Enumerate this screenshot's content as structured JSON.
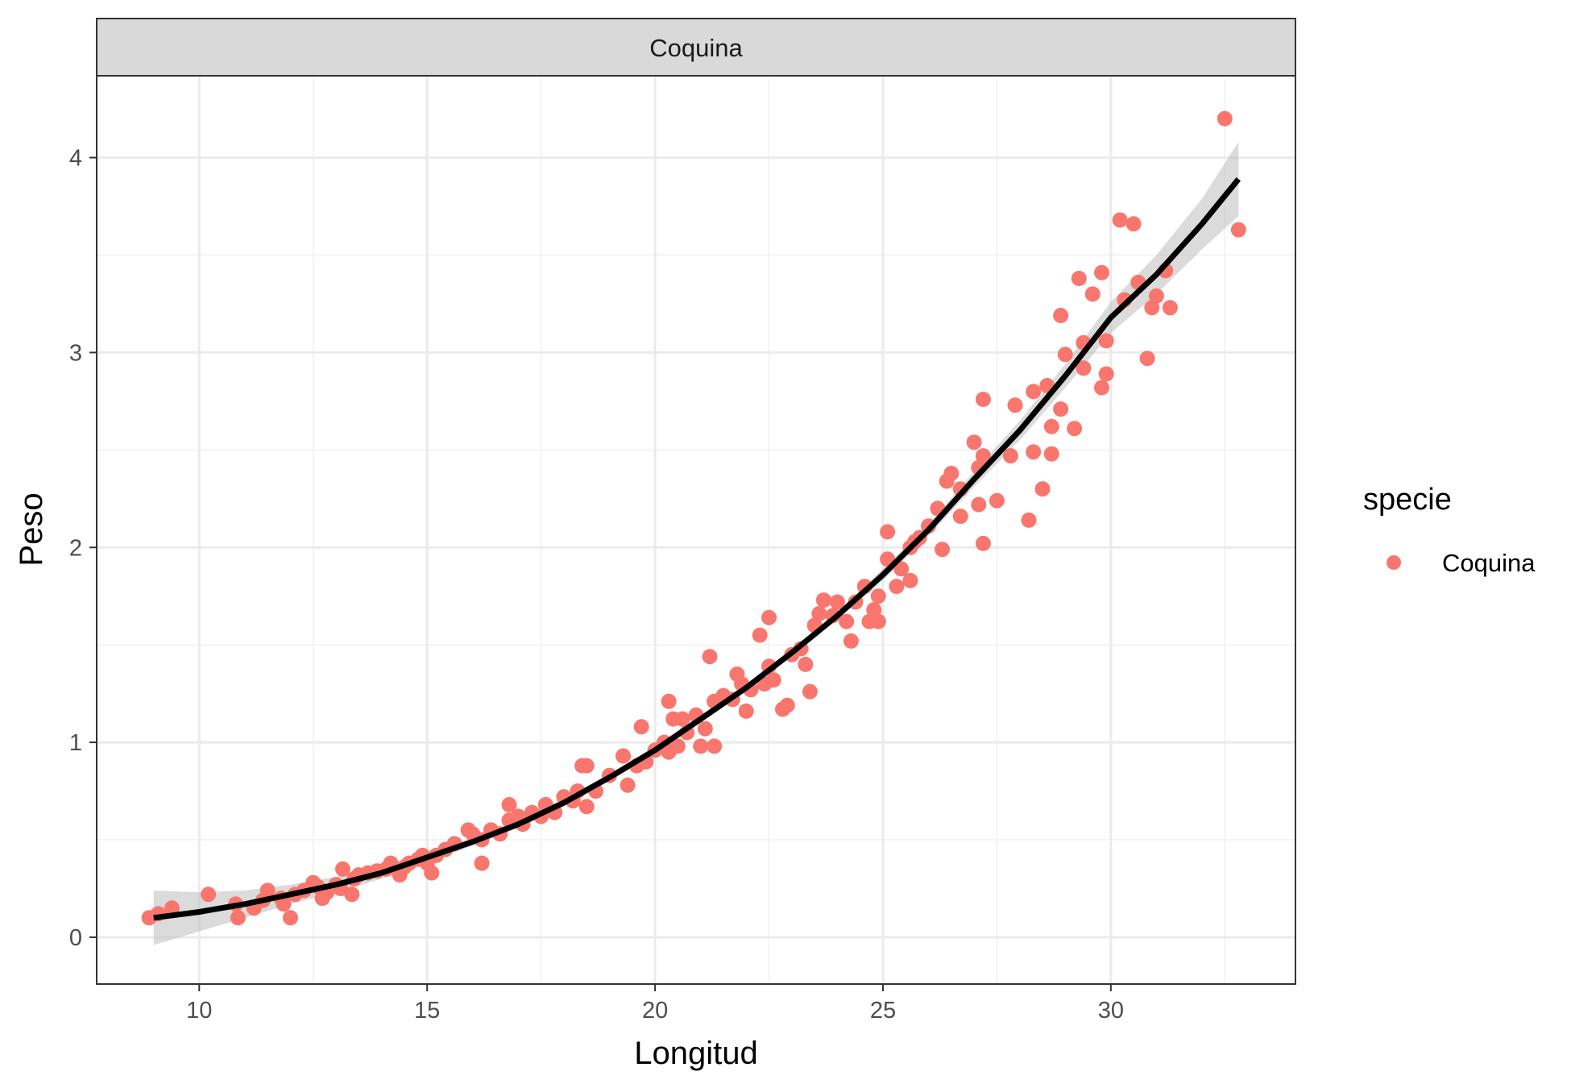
{
  "chart_data": {
    "type": "scatter",
    "facet_label": "Coquina",
    "xlabel": "Longitud",
    "ylabel": "Peso",
    "xlim": [
      7.75,
      34.05
    ],
    "ylim": [
      -0.24,
      4.42
    ],
    "x_ticks": [
      10,
      15,
      20,
      25,
      30
    ],
    "y_ticks": [
      0,
      1,
      2,
      3,
      4
    ],
    "grid": true,
    "legend": {
      "title": "specie",
      "placement": "right",
      "entries": [
        {
          "label": "Coquina",
          "color": "#f8766d"
        }
      ]
    },
    "series": [
      {
        "name": "Coquina",
        "color": "#f8766d",
        "points": [
          [
            8.9,
            0.1
          ],
          [
            9.1,
            0.12
          ],
          [
            9.4,
            0.15
          ],
          [
            10.2,
            0.22
          ],
          [
            10.8,
            0.17
          ],
          [
            10.85,
            0.1
          ],
          [
            11.2,
            0.15
          ],
          [
            11.4,
            0.19
          ],
          [
            11.5,
            0.24
          ],
          [
            11.8,
            0.2
          ],
          [
            11.85,
            0.17
          ],
          [
            12.0,
            0.1
          ],
          [
            12.1,
            0.22
          ],
          [
            12.3,
            0.24
          ],
          [
            12.5,
            0.28
          ],
          [
            12.6,
            0.26
          ],
          [
            12.7,
            0.2
          ],
          [
            12.8,
            0.23
          ],
          [
            13.0,
            0.27
          ],
          [
            13.1,
            0.25
          ],
          [
            13.15,
            0.35
          ],
          [
            13.35,
            0.22
          ],
          [
            13.4,
            0.3
          ],
          [
            13.5,
            0.32
          ],
          [
            13.7,
            0.33
          ],
          [
            13.9,
            0.34
          ],
          [
            14.1,
            0.35
          ],
          [
            14.2,
            0.38
          ],
          [
            14.4,
            0.32
          ],
          [
            14.5,
            0.36
          ],
          [
            14.6,
            0.38
          ],
          [
            14.8,
            0.4
          ],
          [
            14.9,
            0.42
          ],
          [
            15.0,
            0.38
          ],
          [
            15.1,
            0.33
          ],
          [
            15.2,
            0.42
          ],
          [
            15.4,
            0.45
          ],
          [
            15.6,
            0.48
          ],
          [
            15.9,
            0.55
          ],
          [
            16.0,
            0.53
          ],
          [
            16.2,
            0.5
          ],
          [
            16.2,
            0.38
          ],
          [
            16.4,
            0.55
          ],
          [
            16.6,
            0.53
          ],
          [
            16.8,
            0.6
          ],
          [
            16.8,
            0.68
          ],
          [
            17.0,
            0.62
          ],
          [
            17.1,
            0.58
          ],
          [
            17.3,
            0.64
          ],
          [
            17.5,
            0.62
          ],
          [
            17.6,
            0.68
          ],
          [
            17.8,
            0.64
          ],
          [
            18.0,
            0.72
          ],
          [
            18.2,
            0.7
          ],
          [
            18.3,
            0.75
          ],
          [
            18.4,
            0.88
          ],
          [
            18.5,
            0.67
          ],
          [
            18.5,
            0.88
          ],
          [
            18.7,
            0.75
          ],
          [
            19.0,
            0.83
          ],
          [
            19.3,
            0.93
          ],
          [
            19.4,
            0.78
          ],
          [
            19.6,
            0.88
          ],
          [
            19.7,
            1.08
          ],
          [
            19.8,
            0.9
          ],
          [
            20.0,
            0.96
          ],
          [
            20.2,
            1.0
          ],
          [
            20.3,
            0.95
          ],
          [
            20.3,
            1.21
          ],
          [
            20.4,
            1.12
          ],
          [
            20.5,
            0.98
          ],
          [
            20.6,
            1.12
          ],
          [
            20.7,
            1.05
          ],
          [
            20.9,
            1.14
          ],
          [
            21.0,
            0.98
          ],
          [
            21.1,
            1.07
          ],
          [
            21.2,
            1.44
          ],
          [
            21.3,
            0.98
          ],
          [
            21.3,
            1.21
          ],
          [
            21.5,
            1.24
          ],
          [
            21.7,
            1.22
          ],
          [
            21.8,
            1.35
          ],
          [
            21.9,
            1.3
          ],
          [
            22.0,
            1.16
          ],
          [
            22.1,
            1.27
          ],
          [
            22.3,
            1.55
          ],
          [
            22.4,
            1.3
          ],
          [
            22.5,
            1.64
          ],
          [
            22.5,
            1.39
          ],
          [
            22.6,
            1.32
          ],
          [
            22.8,
            1.17
          ],
          [
            22.9,
            1.19
          ],
          [
            23.0,
            1.45
          ],
          [
            23.2,
            1.48
          ],
          [
            23.3,
            1.4
          ],
          [
            23.4,
            1.26
          ],
          [
            23.5,
            1.6
          ],
          [
            23.6,
            1.66
          ],
          [
            23.7,
            1.73
          ],
          [
            23.9,
            1.65
          ],
          [
            24.0,
            1.72
          ],
          [
            24.2,
            1.62
          ],
          [
            24.3,
            1.52
          ],
          [
            24.4,
            1.72
          ],
          [
            24.6,
            1.8
          ],
          [
            24.7,
            1.62
          ],
          [
            24.8,
            1.68
          ],
          [
            24.9,
            1.62
          ],
          [
            24.9,
            1.75
          ],
          [
            25.1,
            1.94
          ],
          [
            25.1,
            2.08
          ],
          [
            25.3,
            1.8
          ],
          [
            25.4,
            1.89
          ],
          [
            25.6,
            1.83
          ],
          [
            25.6,
            2.0
          ],
          [
            25.7,
            2.03
          ],
          [
            25.8,
            2.05
          ],
          [
            26.0,
            2.11
          ],
          [
            26.2,
            2.2
          ],
          [
            26.3,
            1.99
          ],
          [
            26.4,
            2.34
          ],
          [
            26.5,
            2.38
          ],
          [
            26.7,
            2.16
          ],
          [
            26.7,
            2.3
          ],
          [
            27.0,
            2.54
          ],
          [
            27.1,
            2.22
          ],
          [
            27.1,
            2.41
          ],
          [
            27.2,
            2.02
          ],
          [
            27.2,
            2.47
          ],
          [
            27.2,
            2.76
          ],
          [
            27.5,
            2.24
          ],
          [
            27.8,
            2.47
          ],
          [
            27.9,
            2.73
          ],
          [
            28.2,
            2.14
          ],
          [
            28.3,
            2.49
          ],
          [
            28.3,
            2.8
          ],
          [
            28.5,
            2.3
          ],
          [
            28.6,
            2.83
          ],
          [
            28.7,
            2.48
          ],
          [
            28.7,
            2.62
          ],
          [
            28.9,
            2.71
          ],
          [
            28.9,
            3.19
          ],
          [
            29.0,
            2.99
          ],
          [
            29.2,
            2.61
          ],
          [
            29.3,
            3.38
          ],
          [
            29.4,
            2.92
          ],
          [
            29.4,
            3.05
          ],
          [
            29.6,
            3.3
          ],
          [
            29.8,
            2.82
          ],
          [
            29.8,
            3.41
          ],
          [
            29.9,
            2.89
          ],
          [
            29.9,
            3.06
          ],
          [
            30.2,
            3.68
          ],
          [
            30.3,
            3.27
          ],
          [
            30.5,
            3.66
          ],
          [
            30.6,
            3.36
          ],
          [
            30.8,
            2.97
          ],
          [
            30.9,
            3.23
          ],
          [
            31.0,
            3.29
          ],
          [
            31.2,
            3.42
          ],
          [
            31.3,
            3.23
          ],
          [
            32.5,
            4.2
          ],
          [
            32.8,
            3.63
          ]
        ]
      }
    ],
    "fit": {
      "color": "#000000",
      "band_color": "#bebebe",
      "x": [
        9.0,
        10.0,
        11.0,
        12.0,
        13.0,
        14.0,
        15.0,
        16.0,
        17.0,
        18.0,
        19.0,
        20.0,
        21.0,
        22.0,
        23.0,
        24.0,
        25.0,
        26.0,
        27.0,
        28.0,
        29.0,
        30.0,
        31.0,
        32.0,
        32.8
      ],
      "y": [
        0.1,
        0.13,
        0.17,
        0.22,
        0.27,
        0.33,
        0.41,
        0.49,
        0.58,
        0.69,
        0.82,
        0.96,
        1.12,
        1.28,
        1.46,
        1.65,
        1.86,
        2.09,
        2.35,
        2.6,
        2.88,
        3.18,
        3.4,
        3.66,
        3.89
      ],
      "lower": [
        -0.04,
        0.03,
        0.1,
        0.17,
        0.23,
        0.3,
        0.38,
        0.47,
        0.56,
        0.67,
        0.8,
        0.94,
        1.1,
        1.26,
        1.44,
        1.63,
        1.83,
        2.06,
        2.31,
        2.55,
        2.82,
        3.1,
        3.3,
        3.53,
        3.7
      ],
      "upper": [
        0.24,
        0.23,
        0.24,
        0.27,
        0.31,
        0.36,
        0.44,
        0.51,
        0.6,
        0.71,
        0.84,
        0.98,
        1.14,
        1.3,
        1.48,
        1.67,
        1.89,
        2.12,
        2.39,
        2.65,
        2.94,
        3.26,
        3.5,
        3.79,
        4.08
      ]
    }
  }
}
